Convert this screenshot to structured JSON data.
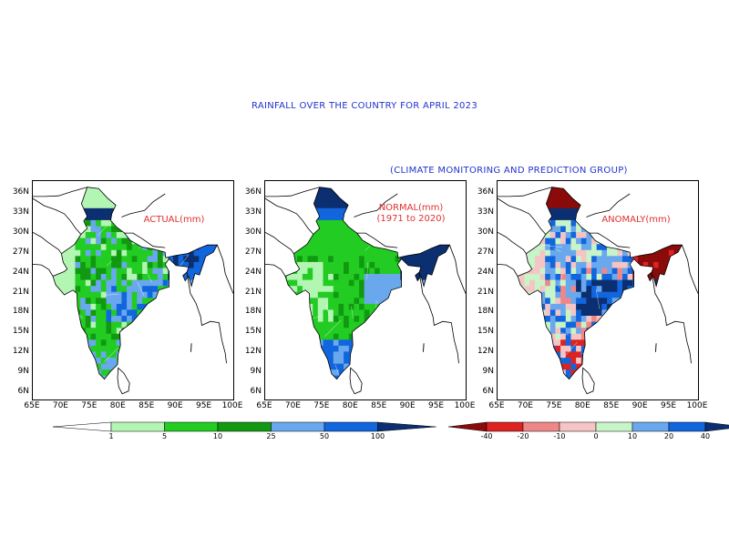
{
  "title": "RAINFALL OVER THE COUNTRY FOR APRIL 2023",
  "subtitle": "(CLIMATE MONITORING AND PREDICTION GROUP)",
  "panels": [
    {
      "label_lines": [
        "ACTUAL(mm)"
      ],
      "scheme": "rain"
    },
    {
      "label_lines": [
        "NORMAL(mm)",
        "(1971 to 2020)"
      ],
      "scheme": "normal"
    },
    {
      "label_lines": [
        "ANOMALY(mm)"
      ],
      "scheme": "anomaly"
    }
  ],
  "lat_ticks": [
    "36N",
    "33N",
    "30N",
    "27N",
    "24N",
    "21N",
    "18N",
    "15N",
    "12N",
    "9N",
    "6N"
  ],
  "lon_ticks": [
    "65E",
    "70E",
    "75E",
    "80E",
    "85E",
    "90E",
    "95E",
    "100E"
  ],
  "rain_scale": {
    "labels": [
      "1",
      "5",
      "10",
      "25",
      "50",
      "100"
    ],
    "colors": [
      "#ffffff",
      "#b3f5b3",
      "#22cc22",
      "#119911",
      "#6aa8ee",
      "#1166dd",
      "#0b2f70"
    ]
  },
  "anomaly_scale": {
    "labels": [
      "-40",
      "-20",
      "-10",
      "0",
      "10",
      "20",
      "40"
    ],
    "colors": [
      "#8b0a0a",
      "#dd2222",
      "#ee8888",
      "#f5c4c4",
      "#c8f5c8",
      "#6aa8ee",
      "#1166dd",
      "#0b2f70"
    ]
  }
}
